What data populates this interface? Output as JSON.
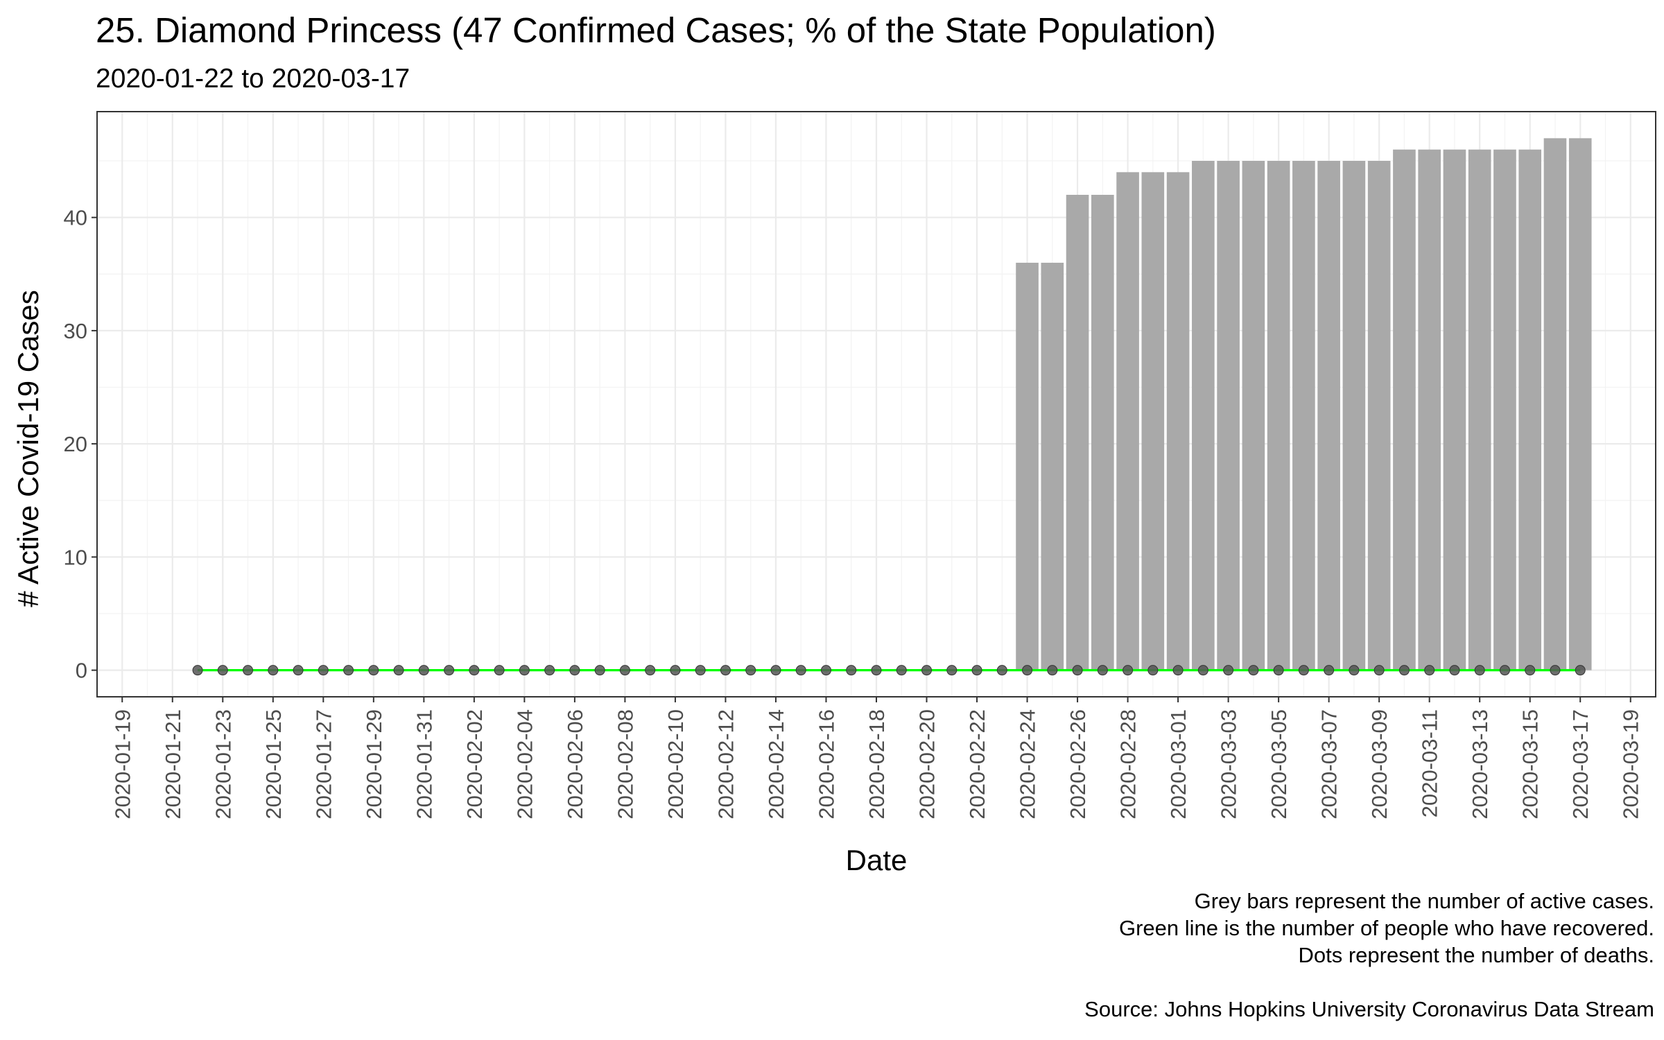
{
  "chart_data": {
    "type": "bar",
    "title": "25. Diamond Princess (47 Confirmed Cases; % of the State Population)",
    "subtitle": "2020-01-22 to 2020-03-17",
    "xlabel": "Date",
    "ylabel": "# Active Covid-19 Cases",
    "x_range": [
      "2020-01-18",
      "2020-03-20"
    ],
    "ylim": [
      -2.35,
      49.35
    ],
    "y_ticks": [
      0,
      10,
      20,
      30,
      40
    ],
    "x_ticks": [
      "2020-01-19",
      "2020-01-21",
      "2020-01-23",
      "2020-01-25",
      "2020-01-27",
      "2020-01-29",
      "2020-01-31",
      "2020-02-02",
      "2020-02-04",
      "2020-02-06",
      "2020-02-08",
      "2020-02-10",
      "2020-02-12",
      "2020-02-14",
      "2020-02-16",
      "2020-02-18",
      "2020-02-20",
      "2020-02-22",
      "2020-02-24",
      "2020-02-26",
      "2020-02-28",
      "2020-03-01",
      "2020-03-03",
      "2020-03-05",
      "2020-03-07",
      "2020-03-09",
      "2020-03-11",
      "2020-03-13",
      "2020-03-15",
      "2020-03-17",
      "2020-03-19"
    ],
    "grid": true,
    "colors": {
      "bars": "#a9a9a9",
      "recovered_line": "#00ff00",
      "death_dots": "#555555"
    },
    "dates": [
      "2020-01-22",
      "2020-01-23",
      "2020-01-24",
      "2020-01-25",
      "2020-01-26",
      "2020-01-27",
      "2020-01-28",
      "2020-01-29",
      "2020-01-30",
      "2020-01-31",
      "2020-02-01",
      "2020-02-02",
      "2020-02-03",
      "2020-02-04",
      "2020-02-05",
      "2020-02-06",
      "2020-02-07",
      "2020-02-08",
      "2020-02-09",
      "2020-02-10",
      "2020-02-11",
      "2020-02-12",
      "2020-02-13",
      "2020-02-14",
      "2020-02-15",
      "2020-02-16",
      "2020-02-17",
      "2020-02-18",
      "2020-02-19",
      "2020-02-20",
      "2020-02-21",
      "2020-02-22",
      "2020-02-23",
      "2020-02-24",
      "2020-02-25",
      "2020-02-26",
      "2020-02-27",
      "2020-02-28",
      "2020-02-29",
      "2020-03-01",
      "2020-03-02",
      "2020-03-03",
      "2020-03-04",
      "2020-03-05",
      "2020-03-06",
      "2020-03-07",
      "2020-03-08",
      "2020-03-09",
      "2020-03-10",
      "2020-03-11",
      "2020-03-12",
      "2020-03-13",
      "2020-03-14",
      "2020-03-15",
      "2020-03-16",
      "2020-03-17"
    ],
    "series": [
      {
        "values": [
          0,
          0,
          0,
          0,
          0,
          0,
          0,
          0,
          0,
          0,
          0,
          0,
          0,
          0,
          0,
          0,
          0,
          0,
          0,
          0,
          0,
          0,
          0,
          0,
          0,
          0,
          0,
          0,
          0,
          0,
          0,
          0,
          0,
          36,
          36,
          42,
          42,
          44,
          44,
          44,
          45,
          45,
          45,
          45,
          45,
          45,
          45,
          45,
          46,
          46,
          46,
          46,
          46,
          46,
          47,
          47
        ]
      },
      {
        "values": [
          0,
          0,
          0,
          0,
          0,
          0,
          0,
          0,
          0,
          0,
          0,
          0,
          0,
          0,
          0,
          0,
          0,
          0,
          0,
          0,
          0,
          0,
          0,
          0,
          0,
          0,
          0,
          0,
          0,
          0,
          0,
          0,
          0,
          0,
          0,
          0,
          0,
          0,
          0,
          0,
          0,
          0,
          0,
          0,
          0,
          0,
          0,
          0,
          0,
          0,
          0,
          0,
          0,
          0,
          0,
          0
        ]
      },
      {
        "values": [
          0,
          0,
          0,
          0,
          0,
          0,
          0,
          0,
          0,
          0,
          0,
          0,
          0,
          0,
          0,
          0,
          0,
          0,
          0,
          0,
          0,
          0,
          0,
          0,
          0,
          0,
          0,
          0,
          0,
          0,
          0,
          0,
          0,
          0,
          0,
          0,
          0,
          0,
          0,
          0,
          0,
          0,
          0,
          0,
          0,
          0,
          0,
          0,
          0,
          0,
          0,
          0,
          0,
          0,
          0,
          0
        ]
      }
    ],
    "caption": [
      "Grey bars represent the number of active cases.",
      "Green line is the number of people who have recovered.",
      "Dots represent the number of deaths.",
      "",
      "Source: Johns Hopkins University Coronavirus Data Stream"
    ]
  }
}
